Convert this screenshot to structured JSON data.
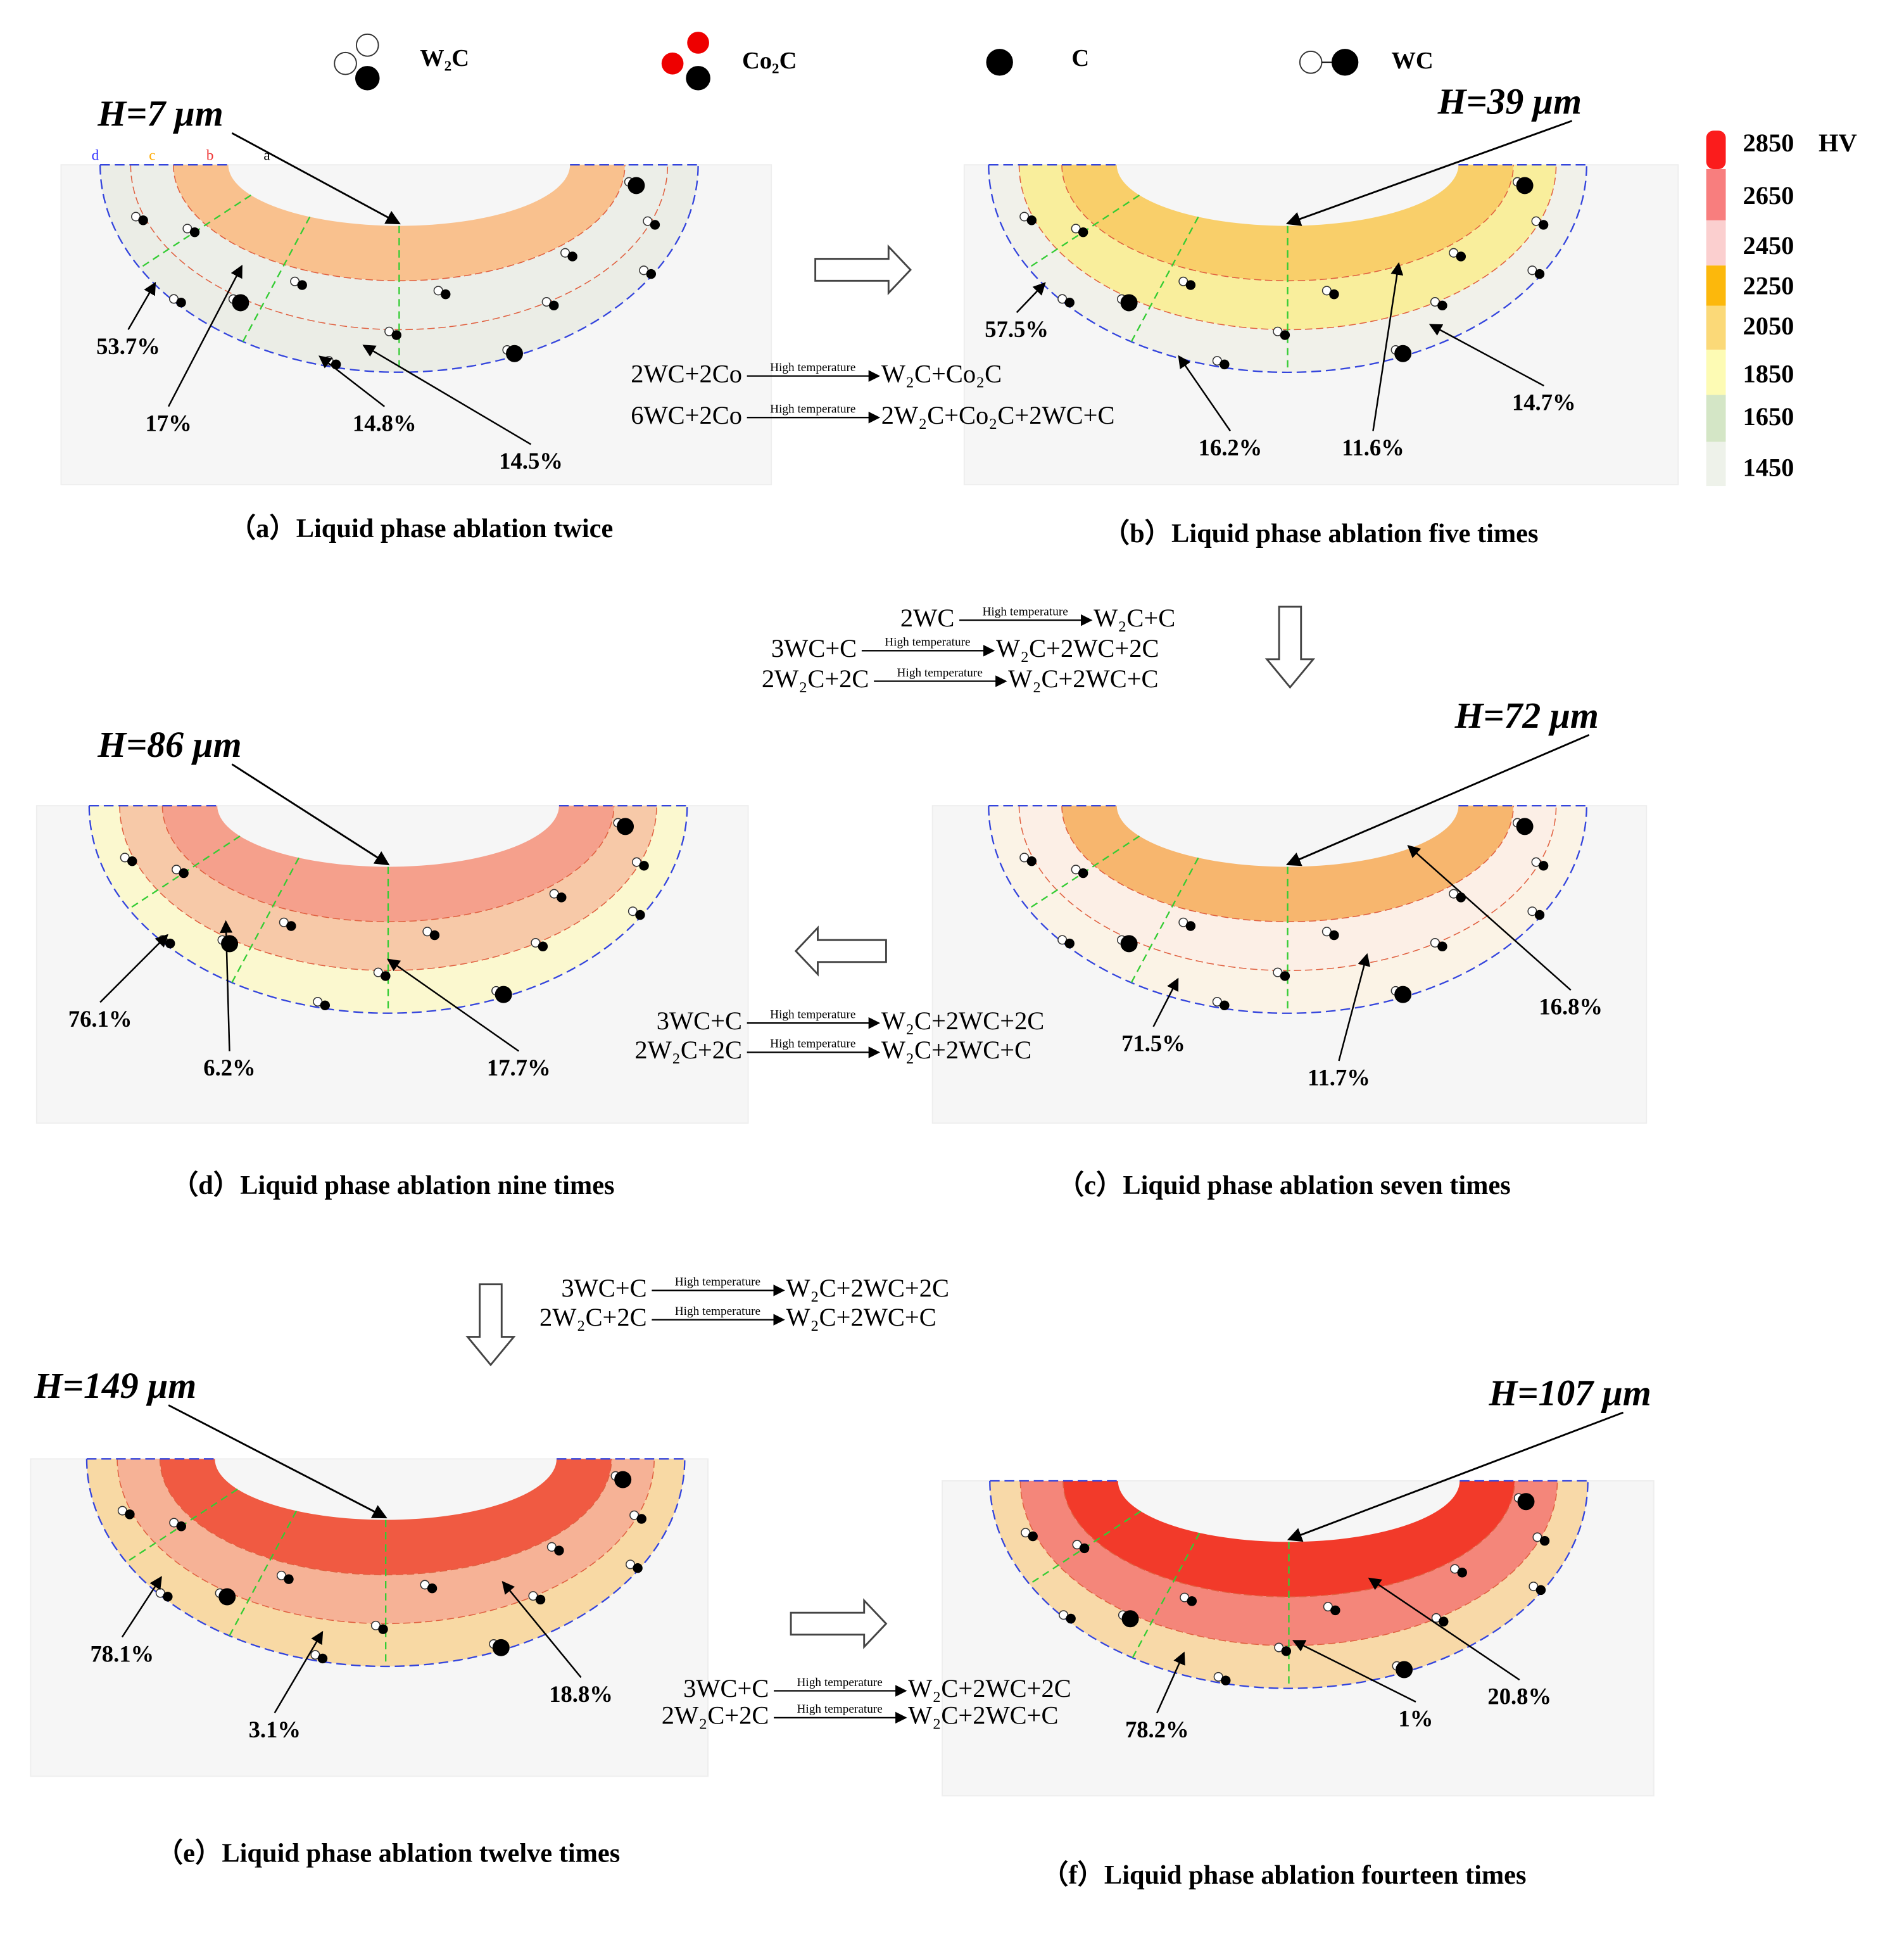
{
  "legend": [
    {
      "label": "W₂C"
    },
    {
      "label": "Co₂C"
    },
    {
      "label": "C"
    },
    {
      "label": "WC"
    }
  ],
  "colorbar": {
    "unit": "HV",
    "levels": [
      2850,
      2650,
      2450,
      2250,
      2050,
      1850,
      1650,
      1450
    ],
    "colors": [
      "#fb1c1c",
      "#f87e7e",
      "#fbcfcf",
      "#fcb80c",
      "#fbd978",
      "#fdfbb4",
      "#d4e6c6",
      "#eef2ea"
    ]
  },
  "reaction_condition": "High temperature",
  "reactions": [
    [
      {
        "left": "2WC+2Co",
        "right": "W₂C+Co₂C"
      },
      {
        "left": "6WC+2Co",
        "right": "2W₂C+Co₂C+2WC+C"
      }
    ],
    [
      {
        "left": "2WC",
        "right": "W₂C+C"
      },
      {
        "left": "3WC+C",
        "right": "W₂C+2WC+2C"
      },
      {
        "left": "2W₂C+2C",
        "right": "W₂C+2WC+C"
      }
    ],
    [
      {
        "left": "3WC+C",
        "right": "W₂C+2WC+2C"
      },
      {
        "left": "2W₂C+2C",
        "right": "W₂C+2WC+C"
      }
    ],
    [
      {
        "left": "3WC+C",
        "right": "W₂C+2WC+2C"
      },
      {
        "left": "2W₂C+2C",
        "right": "W₂C+2WC+C"
      }
    ],
    [
      {
        "left": "3WC+C",
        "right": "W₂C+2WC+2C"
      },
      {
        "left": "2W₂C+2C",
        "right": "W₂C+2WC+C"
      }
    ]
  ],
  "panels": [
    {
      "caption": "（a）Liquid phase ablation twice",
      "depth": "H=7 μm",
      "layers": [
        "d",
        "c",
        "b",
        "a"
      ],
      "percentages": [
        "53.7%",
        "17%",
        "14.8%",
        "14.5%"
      ],
      "colors": [
        "#f9c18e",
        "#eceee8",
        "#ebede6"
      ]
    },
    {
      "caption": "（b）Liquid phase ablation five times",
      "depth": "H=39 μm",
      "percentages": [
        "57.5%",
        "16.2%",
        "11.6%",
        "14.7%"
      ],
      "colors": [
        "#f9cf6a",
        "#f9ee9c",
        "#f1f1ea"
      ]
    },
    {
      "caption": "（c）Liquid phase ablation seven times",
      "depth": "H=72 μm",
      "percentages": [
        "71.5%",
        "11.7%",
        "16.8%"
      ],
      "colors": [
        "#f7b66e",
        "#fcefe6",
        "#fbf3e6"
      ]
    },
    {
      "caption": "（d）Liquid phase ablation nine times",
      "depth": "H=86 μm",
      "percentages": [
        "76.1%",
        "6.2%",
        "17.7%"
      ],
      "colors": [
        "#f5a08c",
        "#f7c9a8",
        "#fbf8cf"
      ]
    },
    {
      "caption": "（e）Liquid phase ablation twelve times",
      "depth": "H=149 μm",
      "percentages": [
        "78.1%",
        "3.1%",
        "18.8%"
      ],
      "colors": [
        "#f05a42",
        "#f6b296",
        "#f8d9a4"
      ]
    },
    {
      "caption": "（f）Liquid phase ablation fourteen times",
      "depth": "H=107 μm",
      "percentages": [
        "78.2%",
        "1%",
        "20.8%"
      ],
      "colors": [
        "#f23a2a",
        "#f4867a",
        "#f8d9a8"
      ]
    }
  ]
}
